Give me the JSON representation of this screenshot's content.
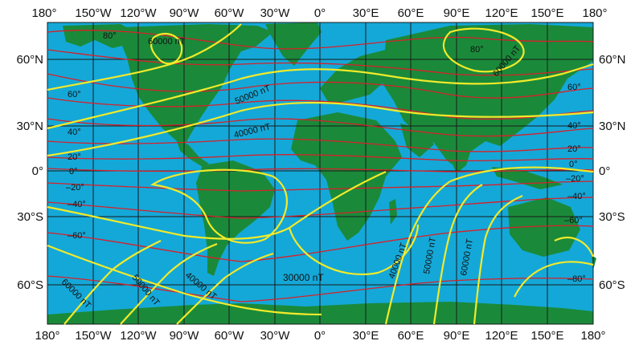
{
  "top_longitudes": [
    "180°",
    "150°W",
    "120°W",
    "90°W",
    "60°W",
    "30°W",
    "0°",
    "30°E",
    "60°E",
    "90°E",
    "120°E",
    "150°E",
    "180°"
  ],
  "bottom_longitudes": [
    "180°",
    "150°W",
    "120°W",
    "90°W",
    "60°W",
    "30°W",
    "0°",
    "30°E",
    "60°E",
    "90°E",
    "120°E",
    "150°E",
    "180°"
  ],
  "left_latitudes": [
    "60°N",
    "30°N",
    "0°",
    "30°S",
    "60°S"
  ],
  "right_latitudes": [
    "60°N",
    "30°N",
    "0°",
    "30°S",
    "60°S"
  ],
  "contours": {
    "nt_60000_top": "60000 nT",
    "nt_50000_na": "50000 nT",
    "nt_40000_mid": "40000 nT",
    "nt_30000": "30000 nT",
    "nt_40000_ind": "40000 nT",
    "nt_50000_ind": "50000 nT",
    "nt_60000_ind": "60000 nT",
    "nt_60000_siberia": "60000 nT",
    "nt_60000_sw": "60000 nT",
    "nt_50000_sw": "50000 nT",
    "nt_40000_sw": "40000 nT",
    "inc_80_nw": "80°",
    "inc_80_ne": "80°",
    "inc_60_w": "60°",
    "inc_40_w": "40°",
    "inc_20_w": "20°",
    "inc_0_w": "0°",
    "inc_m20_w": "–20°",
    "inc_m40_w": "–40°",
    "inc_m60_w": "–60°",
    "inc_60_e": "60°",
    "inc_40_e": "40°",
    "inc_20_e": "20°",
    "inc_0_e": "0°",
    "inc_m20_e": "–20°",
    "inc_m40_e": "–40°",
    "inc_m60_e": "–60°",
    "inc_m80_e": "–80°"
  },
  "colors": {
    "ocean": "#14a8d8",
    "land": "#1a8a3a",
    "intensity_lines": "#f2ea2a",
    "inclination_lines": "#d8202a",
    "grid": "#1a1a1a"
  }
}
